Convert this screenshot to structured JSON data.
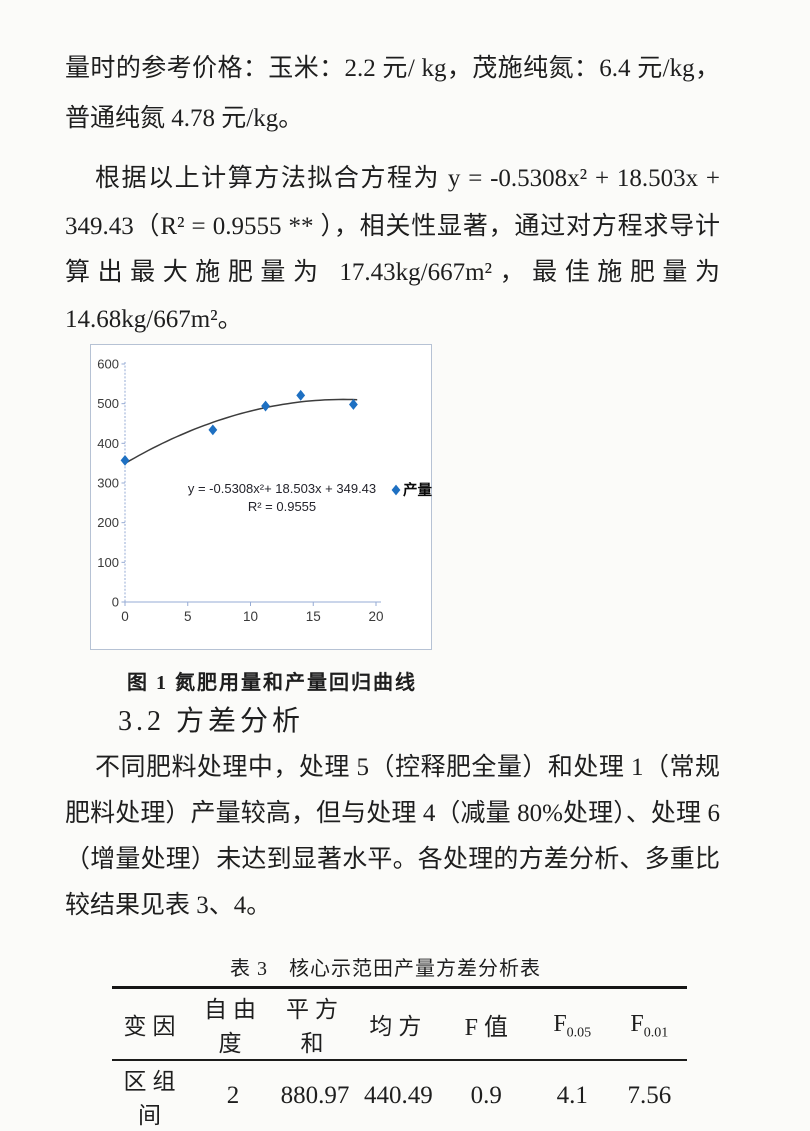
{
  "paragraphs": {
    "p1": {
      "lines": [
        "量时的参考价格：玉米：2.2 元/ kg，茂施纯氮：6.4 元/kg，",
        "普通纯氮 4.78 元/kg。"
      ]
    },
    "p2": {
      "lines": [
        "根据以上计算方法拟合方程为 y = -0.5308x² + 18.503x +",
        "349.43（R² = 0.9555 ** ），相关性显著，通过对方程求导计",
        "算出最大施肥量为 17.43kg/667m²，最佳施肥量为",
        "14.68kg/667m²。"
      ]
    },
    "figure_caption": "图 1 氮肥用量和产量回归曲线",
    "section_heading": "3.2 方差分析",
    "p3": {
      "lines": [
        "不同肥料处理中，处理 5（控释肥全量）和处理 1（常规",
        "肥料处理）产量较高，但与处理 4（减量 80%处理）、处理 6",
        "（增量处理）未达到显著水平。各处理的方差分析、多重比",
        "较结果见表 3、4。"
      ]
    }
  },
  "chart_data": {
    "type": "scatter",
    "title": "",
    "xlabel": "",
    "ylabel": "",
    "xlim": [
      0,
      20
    ],
    "ylim": [
      0,
      600
    ],
    "x_ticks": [
      0,
      5,
      10,
      15,
      20
    ],
    "y_ticks": [
      0,
      100,
      200,
      300,
      400,
      500,
      600
    ],
    "series": [
      {
        "name": "产量",
        "x": [
          0,
          7,
          11.2,
          14,
          18.2
        ],
        "y": [
          357,
          434,
          494,
          521,
          498
        ]
      }
    ],
    "trendline": {
      "type": "quadratic",
      "a": -0.5308,
      "b": 18.503,
      "c": 349.43,
      "x_range": [
        0,
        18.5
      ]
    },
    "annotations": [
      "y = -0.5308x²+ 18.503x + 349.43",
      "R² = 0.9555"
    ],
    "legend": [
      "产量"
    ],
    "legend_position": "right",
    "grid": false,
    "colors": {
      "marker": "#1e70c2",
      "line": "#3d3d3d",
      "axis": "#96abd4",
      "border": "#b6c2d4",
      "tick_text": "#3a3a3a",
      "annotation_text": "#23232b"
    }
  },
  "table": {
    "title": "表 3　核心示范田产量方差分析表",
    "columns": [
      {
        "label": "变因"
      },
      {
        "label": "自由度"
      },
      {
        "label": "平方和"
      },
      {
        "label": "均方"
      },
      {
        "label": "F 值"
      },
      {
        "label": "F",
        "sub": "0.05"
      },
      {
        "label": "F",
        "sub": "0.01"
      }
    ],
    "rows": [
      [
        "区组间",
        "2",
        "880.97",
        "440.49",
        "0.9",
        "4.1",
        "7.56"
      ]
    ]
  }
}
